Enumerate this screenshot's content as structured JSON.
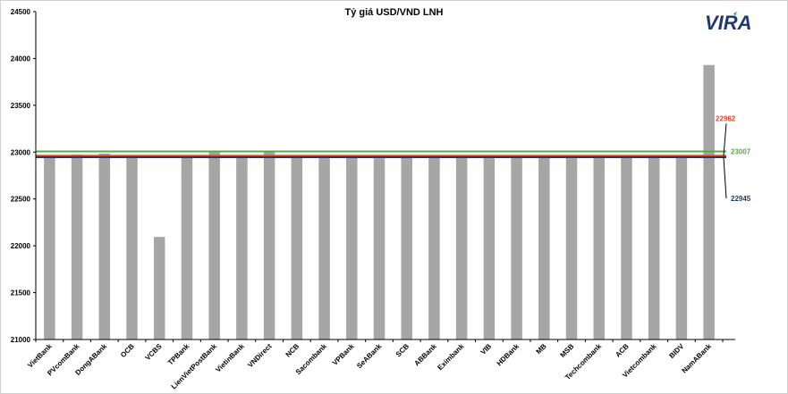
{
  "chart_data": {
    "type": "bar",
    "title": "Tỷ giá USD/VND LNH",
    "xlabel": "",
    "ylabel": "",
    "ylim": [
      21000,
      24500
    ],
    "yticks": [
      21000,
      21500,
      22000,
      22500,
      23000,
      23500,
      24000,
      24500
    ],
    "grid": false,
    "legend": "none",
    "categories": [
      "VietBank",
      "PVcomBank",
      "DongABank",
      "OCB",
      "VCBS",
      "TPBank",
      "LienVietPostBank",
      "VietinBank",
      "VNDirect",
      "NCB",
      "Sacombank",
      "VPBank",
      "SeABank",
      "SCB",
      "ABBank",
      "Eximbank",
      "VIB",
      "HDBank",
      "MB",
      "MSB",
      "Techcombank",
      "ACB",
      "Vietcombank",
      "BIDV",
      "NamABank"
    ],
    "values": [
      22955,
      22975,
      22985,
      22960,
      22095,
      22970,
      23005,
      22960,
      23000,
      22965,
      22935,
      22965,
      22935,
      22965,
      22965,
      22965,
      22935,
      22965,
      22965,
      22935,
      22965,
      22965,
      22965,
      22965,
      23930
    ],
    "reference_lines": [
      {
        "value": 23007,
        "label": "23007",
        "color": "#5aaa3c"
      },
      {
        "value": 22962,
        "label": "22962",
        "color": "#e8442a"
      },
      {
        "value": 22945,
        "label": "22945",
        "color": "#1f3a5f"
      }
    ],
    "colors": {
      "bar": "#a6a6a6",
      "axis": "#000000"
    }
  },
  "logo": {
    "text": "VIRA",
    "color": "#1f3a6e",
    "accent": "#2a9ad8"
  }
}
